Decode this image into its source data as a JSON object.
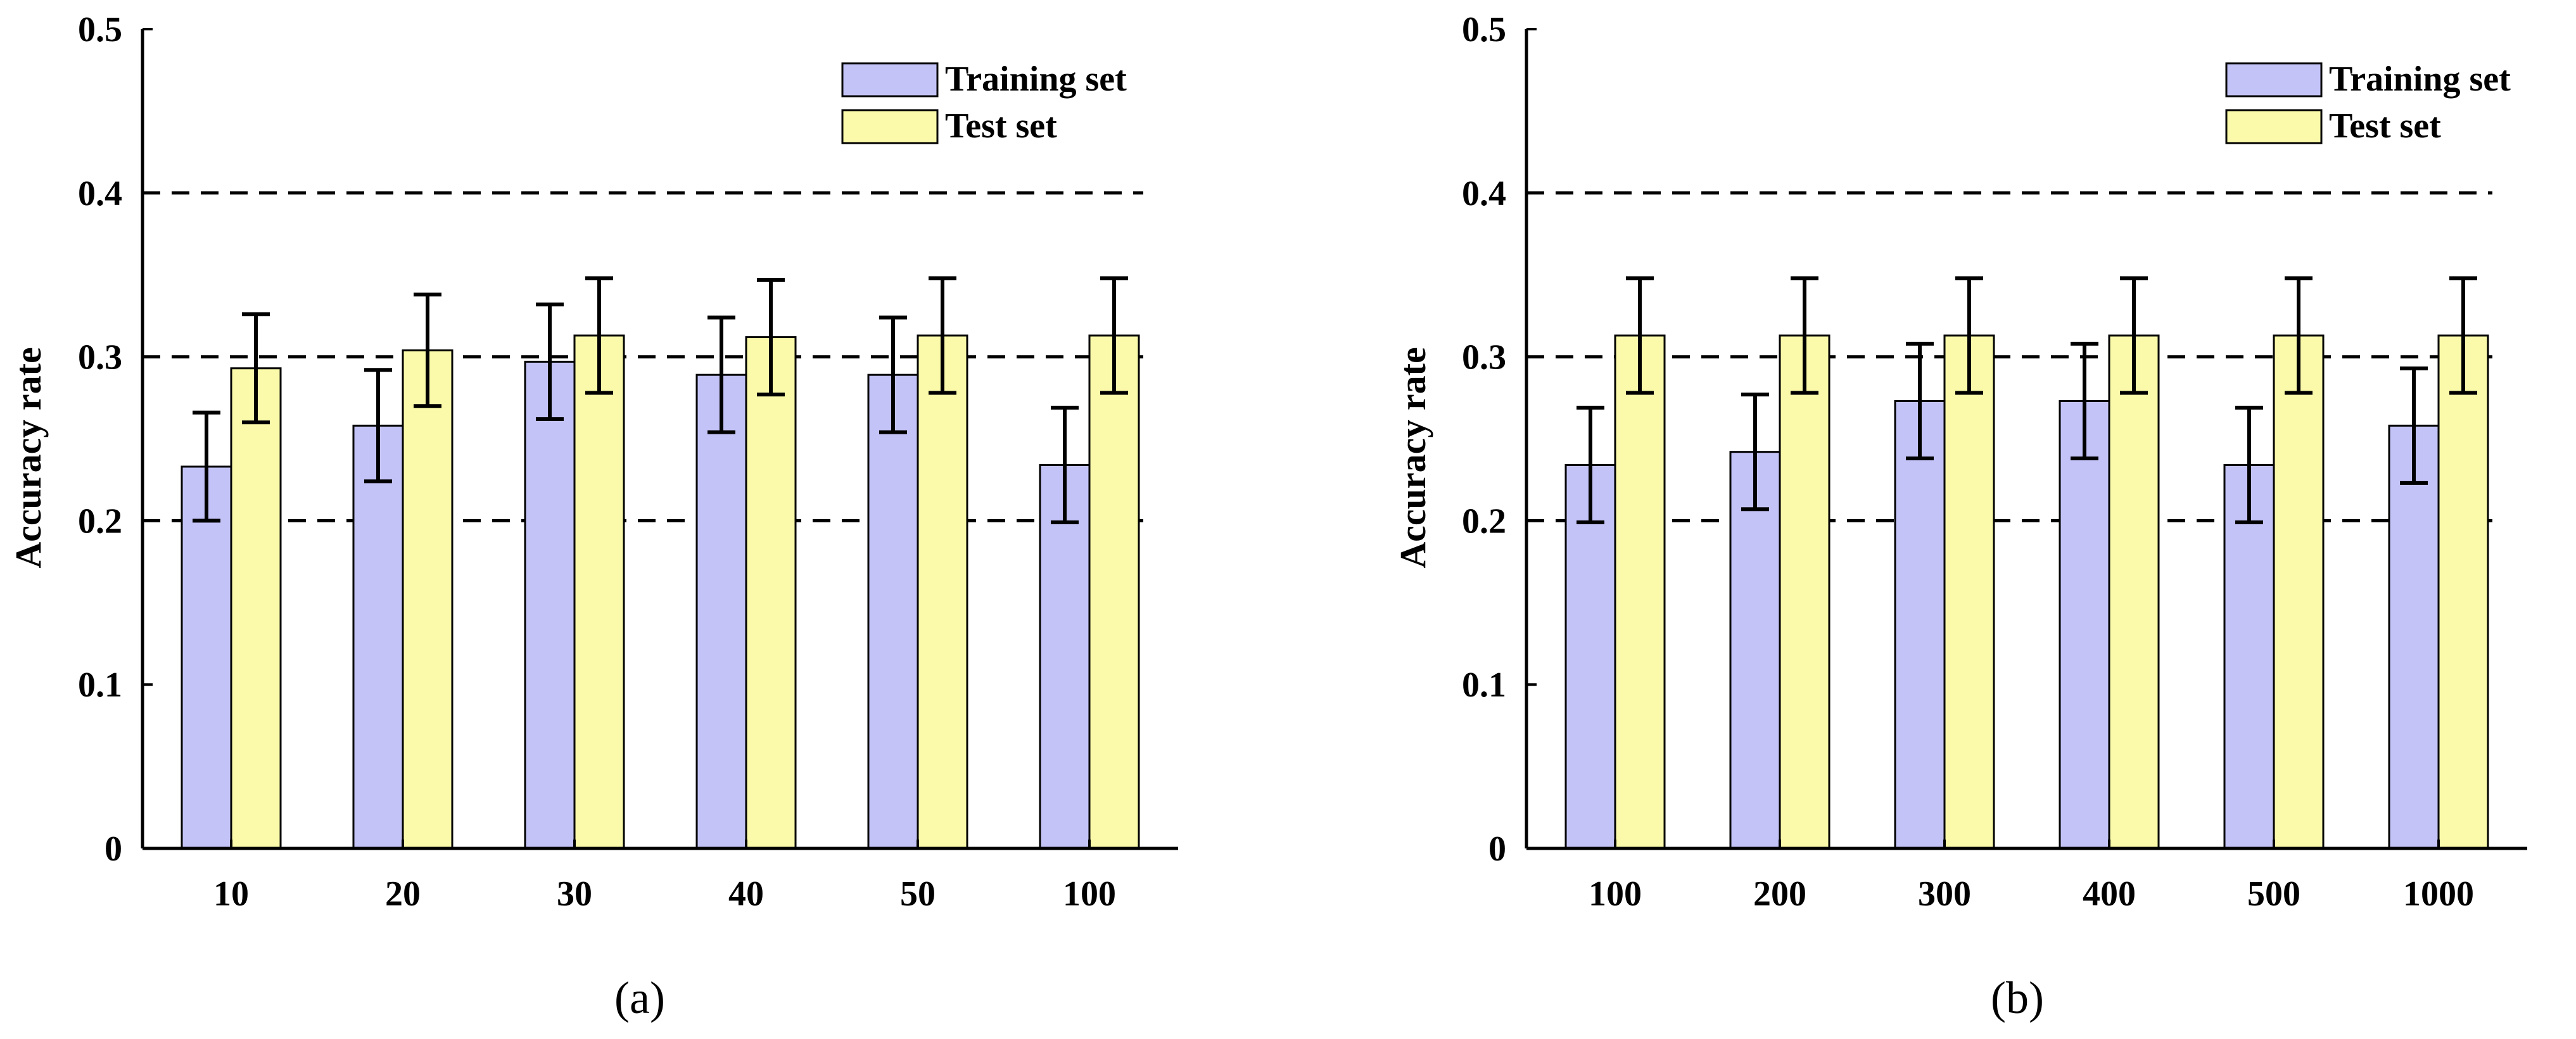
{
  "chart_data": [
    {
      "type": "bar",
      "panel_label": "(a)",
      "categories": [
        "10",
        "20",
        "30",
        "40",
        "50",
        "100"
      ],
      "series": [
        {
          "name": "Training set",
          "color": "#C3C3F7",
          "values": [
            0.233,
            0.258,
            0.297,
            0.289,
            0.289,
            0.234
          ],
          "errors": [
            0.033,
            0.034,
            0.035,
            0.035,
            0.035,
            0.035
          ]
        },
        {
          "name": "Test set",
          "color": "#FAFAAA",
          "values": [
            0.293,
            0.304,
            0.313,
            0.312,
            0.313,
            0.313
          ],
          "errors": [
            0.033,
            0.034,
            0.035,
            0.035,
            0.035,
            0.035
          ]
        }
      ],
      "ylabel": "Accuracy rate",
      "xlabel": "",
      "ylim": [
        0,
        0.5
      ],
      "yticks": [
        "0",
        "0.1",
        "0.2",
        "0.3",
        "0.4",
        "0.5"
      ],
      "reference_lines": [
        0.2,
        0.3,
        0.4
      ],
      "legend_position": "top-right"
    },
    {
      "type": "bar",
      "panel_label": "(b)",
      "categories": [
        "100",
        "200",
        "300",
        "400",
        "500",
        "1000"
      ],
      "series": [
        {
          "name": "Training set",
          "color": "#C3C3F7",
          "values": [
            0.234,
            0.242,
            0.273,
            0.273,
            0.234,
            0.258
          ],
          "errors": [
            0.035,
            0.035,
            0.035,
            0.035,
            0.035,
            0.035
          ]
        },
        {
          "name": "Test set",
          "color": "#FAFAAA",
          "values": [
            0.313,
            0.313,
            0.313,
            0.313,
            0.313,
            0.313
          ],
          "errors": [
            0.035,
            0.035,
            0.035,
            0.035,
            0.035,
            0.035
          ]
        }
      ],
      "ylabel": "Accuracy rate",
      "xlabel": "",
      "ylim": [
        0,
        0.5
      ],
      "yticks": [
        "0",
        "0.1",
        "0.2",
        "0.3",
        "0.4",
        "0.5"
      ],
      "reference_lines": [
        0.2,
        0.3,
        0.4
      ],
      "legend_position": "top-right"
    }
  ]
}
